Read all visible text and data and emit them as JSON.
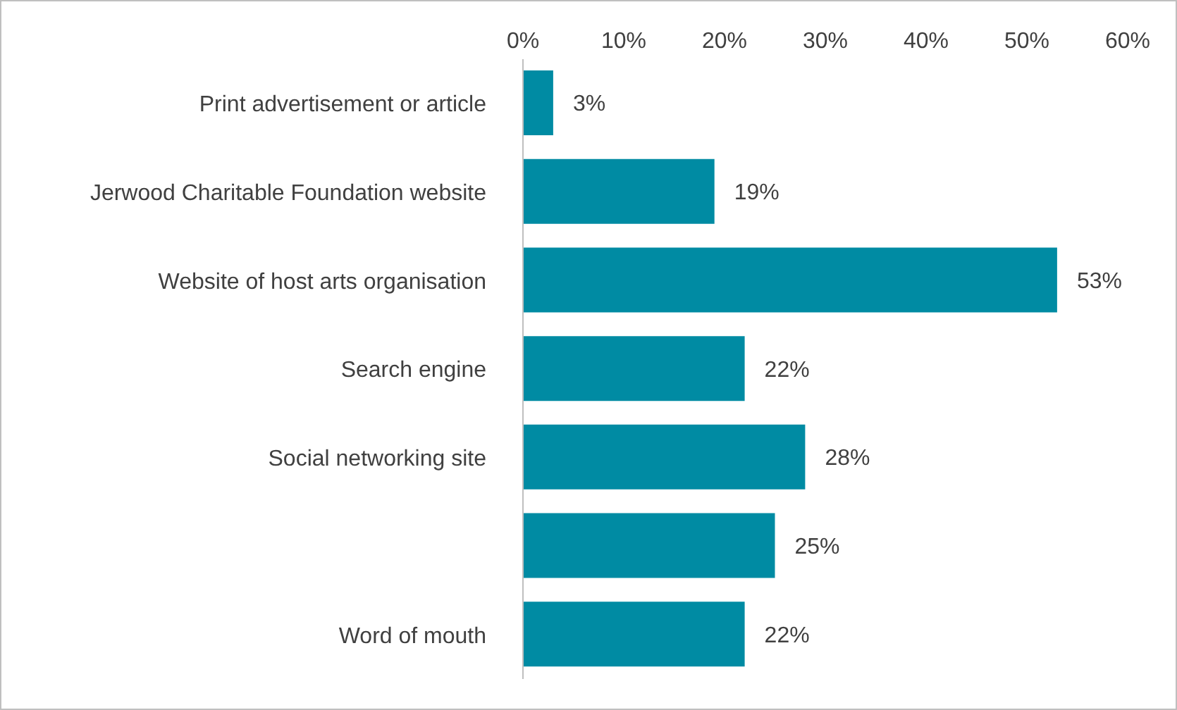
{
  "chart_data": {
    "type": "bar",
    "orientation": "horizontal",
    "categories": [
      "Print advertisement or article",
      "Jerwood Charitable Foundation website",
      "Website of host arts organisation",
      "Search engine",
      "Social networking site",
      null,
      "Word of mouth"
    ],
    "values": [
      3,
      19,
      53,
      22,
      28,
      25,
      22
    ],
    "value_labels": [
      "3%",
      "19%",
      "53%",
      "22%",
      "28%",
      "25%",
      "22%"
    ],
    "color": "#008ba3",
    "xlim": [
      0,
      60
    ],
    "xticks": [
      {
        "value": 0,
        "label": "0%"
      },
      {
        "value": 10,
        "label": "10%"
      },
      {
        "value": 20,
        "label": "20%"
      },
      {
        "value": 30,
        "label": "30%"
      },
      {
        "value": 40,
        "label": "40%"
      },
      {
        "value": 50,
        "label": "50%"
      },
      {
        "value": 60,
        "label": "60%"
      }
    ],
    "grid": false,
    "legend": false
  }
}
